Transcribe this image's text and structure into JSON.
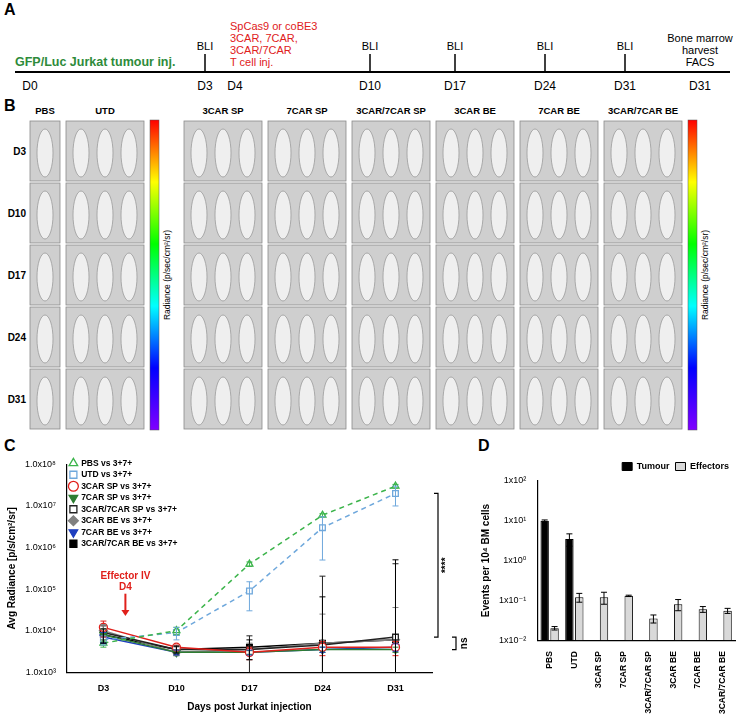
{
  "panel_labels": [
    "A",
    "B",
    "C",
    "D"
  ],
  "timeline": {
    "events": [
      {
        "day": "D0",
        "lines": [
          "GFP/Luc Jurkat tumour inj."
        ],
        "color": "#2e8b3a",
        "tick": false
      },
      {
        "day": "D3",
        "lines": [
          "BLI"
        ],
        "color": "#000000",
        "tick": true
      },
      {
        "day": "D4",
        "lines": [
          "SpCas9 or coBE3",
          "3CAR, 7CAR,",
          "3CAR/7CAR",
          "T cell inj."
        ],
        "color": "#e0201b",
        "tick": false
      },
      {
        "day": "D10",
        "lines": [
          "BLI"
        ],
        "color": "#000000",
        "tick": true
      },
      {
        "day": "D17",
        "lines": [
          "BLI"
        ],
        "color": "#000000",
        "tick": true
      },
      {
        "day": "D24",
        "lines": [
          "BLI"
        ],
        "color": "#000000",
        "tick": true
      },
      {
        "day": "D31",
        "lines": [
          "BLI"
        ],
        "color": "#000000",
        "tick": true
      },
      {
        "day": "D31",
        "lines": [
          "Bone marrow",
          "harvest",
          "FACS"
        ],
        "color": "#000000",
        "tick": false
      }
    ]
  },
  "imaging": {
    "columns": [
      {
        "label": "PBS",
        "mice": 1
      },
      {
        "label": "UTD",
        "mice": 3
      },
      {
        "label": "3CAR SP",
        "mice": 3
      },
      {
        "label": "7CAR SP",
        "mice": 3
      },
      {
        "label": "3CAR/7CAR SP",
        "mice": 3
      },
      {
        "label": "3CAR BE",
        "mice": 3
      },
      {
        "label": "7CAR BE",
        "mice": 3
      },
      {
        "label": "3CAR/7CAR BE",
        "mice": 3
      }
    ],
    "rows": [
      "D3",
      "D10",
      "D17",
      "D24",
      "D31"
    ],
    "colorbar_title": "Radiance (p/sec/cm²/sr)"
  },
  "chart_data": [
    {
      "type": "line",
      "log": "y",
      "grid": false,
      "legend": "upper left",
      "xlabel": "Days post Jurkat injection",
      "ylabel": "Avg Radiance [p/s/cm²/sr]",
      "categories": [
        "D3",
        "D10",
        "D17",
        "D24",
        "D31"
      ],
      "ylim": [
        1000,
        100000000
      ],
      "yticks": [
        {
          "value": 1000,
          "label": "1.0x10³"
        },
        {
          "value": 10000,
          "label": "1.0x10⁴"
        },
        {
          "value": 100000,
          "label": "1.0x10⁵"
        },
        {
          "value": 1000000,
          "label": "1.0x10⁶"
        },
        {
          "value": 10000000,
          "label": "1.0x10⁷"
        },
        {
          "value": 100000000,
          "label": "1.0x10⁸"
        }
      ],
      "annotations": [
        {
          "text": [
            "Effector IV",
            "D4"
          ],
          "color": "#e0201b"
        },
        {
          "text": "****",
          "color": "#000000"
        },
        {
          "text": "ns",
          "color": "#000000"
        }
      ],
      "series": [
        {
          "name": "PBS vs 3+7+",
          "color": "#3cb44b",
          "marker": "triangle-open",
          "line_style": "dashed",
          "values": [
            5000,
            10000,
            400000,
            6000000,
            30000000
          ],
          "errors": [
            1000,
            2000,
            50000,
            500000,
            3000000
          ]
        },
        {
          "name": "UTD vs 3+7+",
          "color": "#6fa8dc",
          "marker": "square-open",
          "line_style": "dashed",
          "values": [
            6000,
            9000,
            90000,
            3000000,
            20000000
          ],
          "errors": [
            1500,
            3000,
            60000,
            2500000,
            10000000
          ]
        },
        {
          "name": "3CAR SP vs 3+7+",
          "color": "#e0201b",
          "marker": "circle-open",
          "line_style": "solid",
          "values": [
            12000,
            4000,
            3000,
            4000,
            4000
          ],
          "errors": [
            5000,
            500,
            1000,
            1500,
            1500
          ]
        },
        {
          "name": "7CAR SP vs 3+7+",
          "color": "#2e7d32",
          "marker": "triangle-down",
          "line_style": "solid",
          "values": [
            8000,
            3000,
            3000,
            3500,
            3500
          ],
          "errors": [
            3000,
            500,
            300,
            500,
            500
          ]
        },
        {
          "name": "3CAR/7CAR SP vs 3+7+",
          "color": "#222222",
          "marker": "square-open",
          "line_style": "solid",
          "values": [
            9000,
            3500,
            3500,
            4500,
            7000
          ],
          "errors": [
            4000,
            800,
            4000,
            200000,
            400000
          ]
        },
        {
          "name": "3CAR BE vs 3+7+",
          "color": "#808080",
          "marker": "diamond",
          "line_style": "solid",
          "values": [
            10000,
            3000,
            3500,
            5000,
            6000
          ],
          "errors": [
            4000,
            500,
            1500,
            20000,
            30000
          ]
        },
        {
          "name": "7CAR BE vs 3+7+",
          "color": "#1f3fbf",
          "marker": "triangle-down",
          "line_style": "solid",
          "values": [
            7000,
            3000,
            3000,
            3500,
            4000
          ],
          "errors": [
            2000,
            400,
            400,
            500,
            800
          ]
        },
        {
          "name": "3CAR/7CAR BE vs 3+7+",
          "color": "#000000",
          "marker": "square",
          "line_style": "solid",
          "values": [
            8000,
            3500,
            4000,
            5000,
            6000
          ],
          "errors": [
            3000,
            600,
            2000,
            60000,
            500000
          ]
        }
      ]
    },
    {
      "type": "bar",
      "log": "y",
      "grid": false,
      "legend": "upper right",
      "ylabel": "Events per 10⁴ BM cells",
      "categories": [
        "PBS",
        "UTD",
        "3CAR SP",
        "7CAR SP",
        "3CAR/7CAR SP",
        "3CAR BE",
        "7CAR BE",
        "3CAR/7CAR BE"
      ],
      "ylim": [
        0.01,
        100
      ],
      "yticks": [
        {
          "value": 0.01,
          "label": "1x10⁻²"
        },
        {
          "value": 0.1,
          "label": "1x10⁻¹"
        },
        {
          "value": 1,
          "label": "1x10⁰"
        },
        {
          "value": 10,
          "label": "1x10¹"
        },
        {
          "value": 100,
          "label": "1x10²"
        }
      ],
      "series": [
        {
          "name": "Tumour",
          "color": "#000000",
          "values": [
            10,
            3.5,
            null,
            null,
            null,
            null,
            null,
            null
          ],
          "errors": [
            0.5,
            1.2,
            null,
            null,
            null,
            null,
            null,
            null
          ]
        },
        {
          "name": "Effectors",
          "color": "#d9d9d9",
          "values": [
            0.02,
            0.12,
            0.12,
            0.13,
            0.035,
            0.08,
            0.06,
            0.055
          ],
          "errors": [
            0.002,
            0.03,
            0.04,
            0.005,
            0.008,
            0.025,
            0.01,
            0.008
          ]
        }
      ]
    }
  ]
}
